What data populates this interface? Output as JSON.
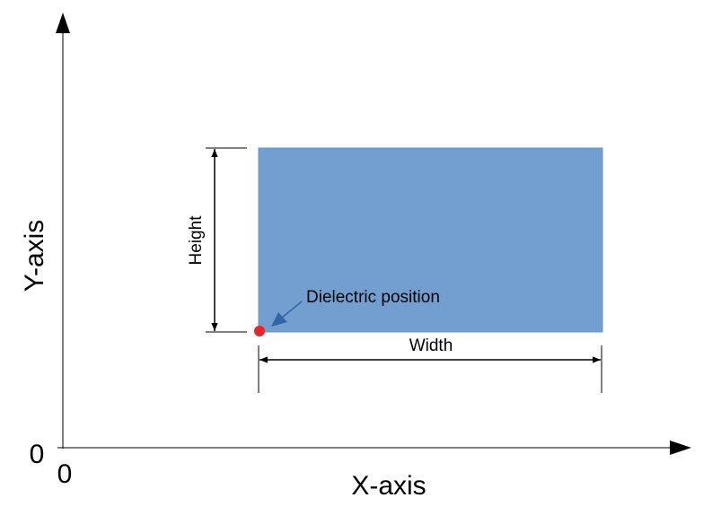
{
  "axes": {
    "x_label": "X-axis",
    "y_label": "Y-axis",
    "x_origin_label": "0",
    "y_origin_label": "0"
  },
  "dielectric": {
    "fill_color": "#729fcf",
    "marker_color": "#e8242c",
    "arrow_color": "#3465a4"
  },
  "labels": {
    "height": "Height",
    "width": "Width",
    "position": "Dielectric position"
  }
}
